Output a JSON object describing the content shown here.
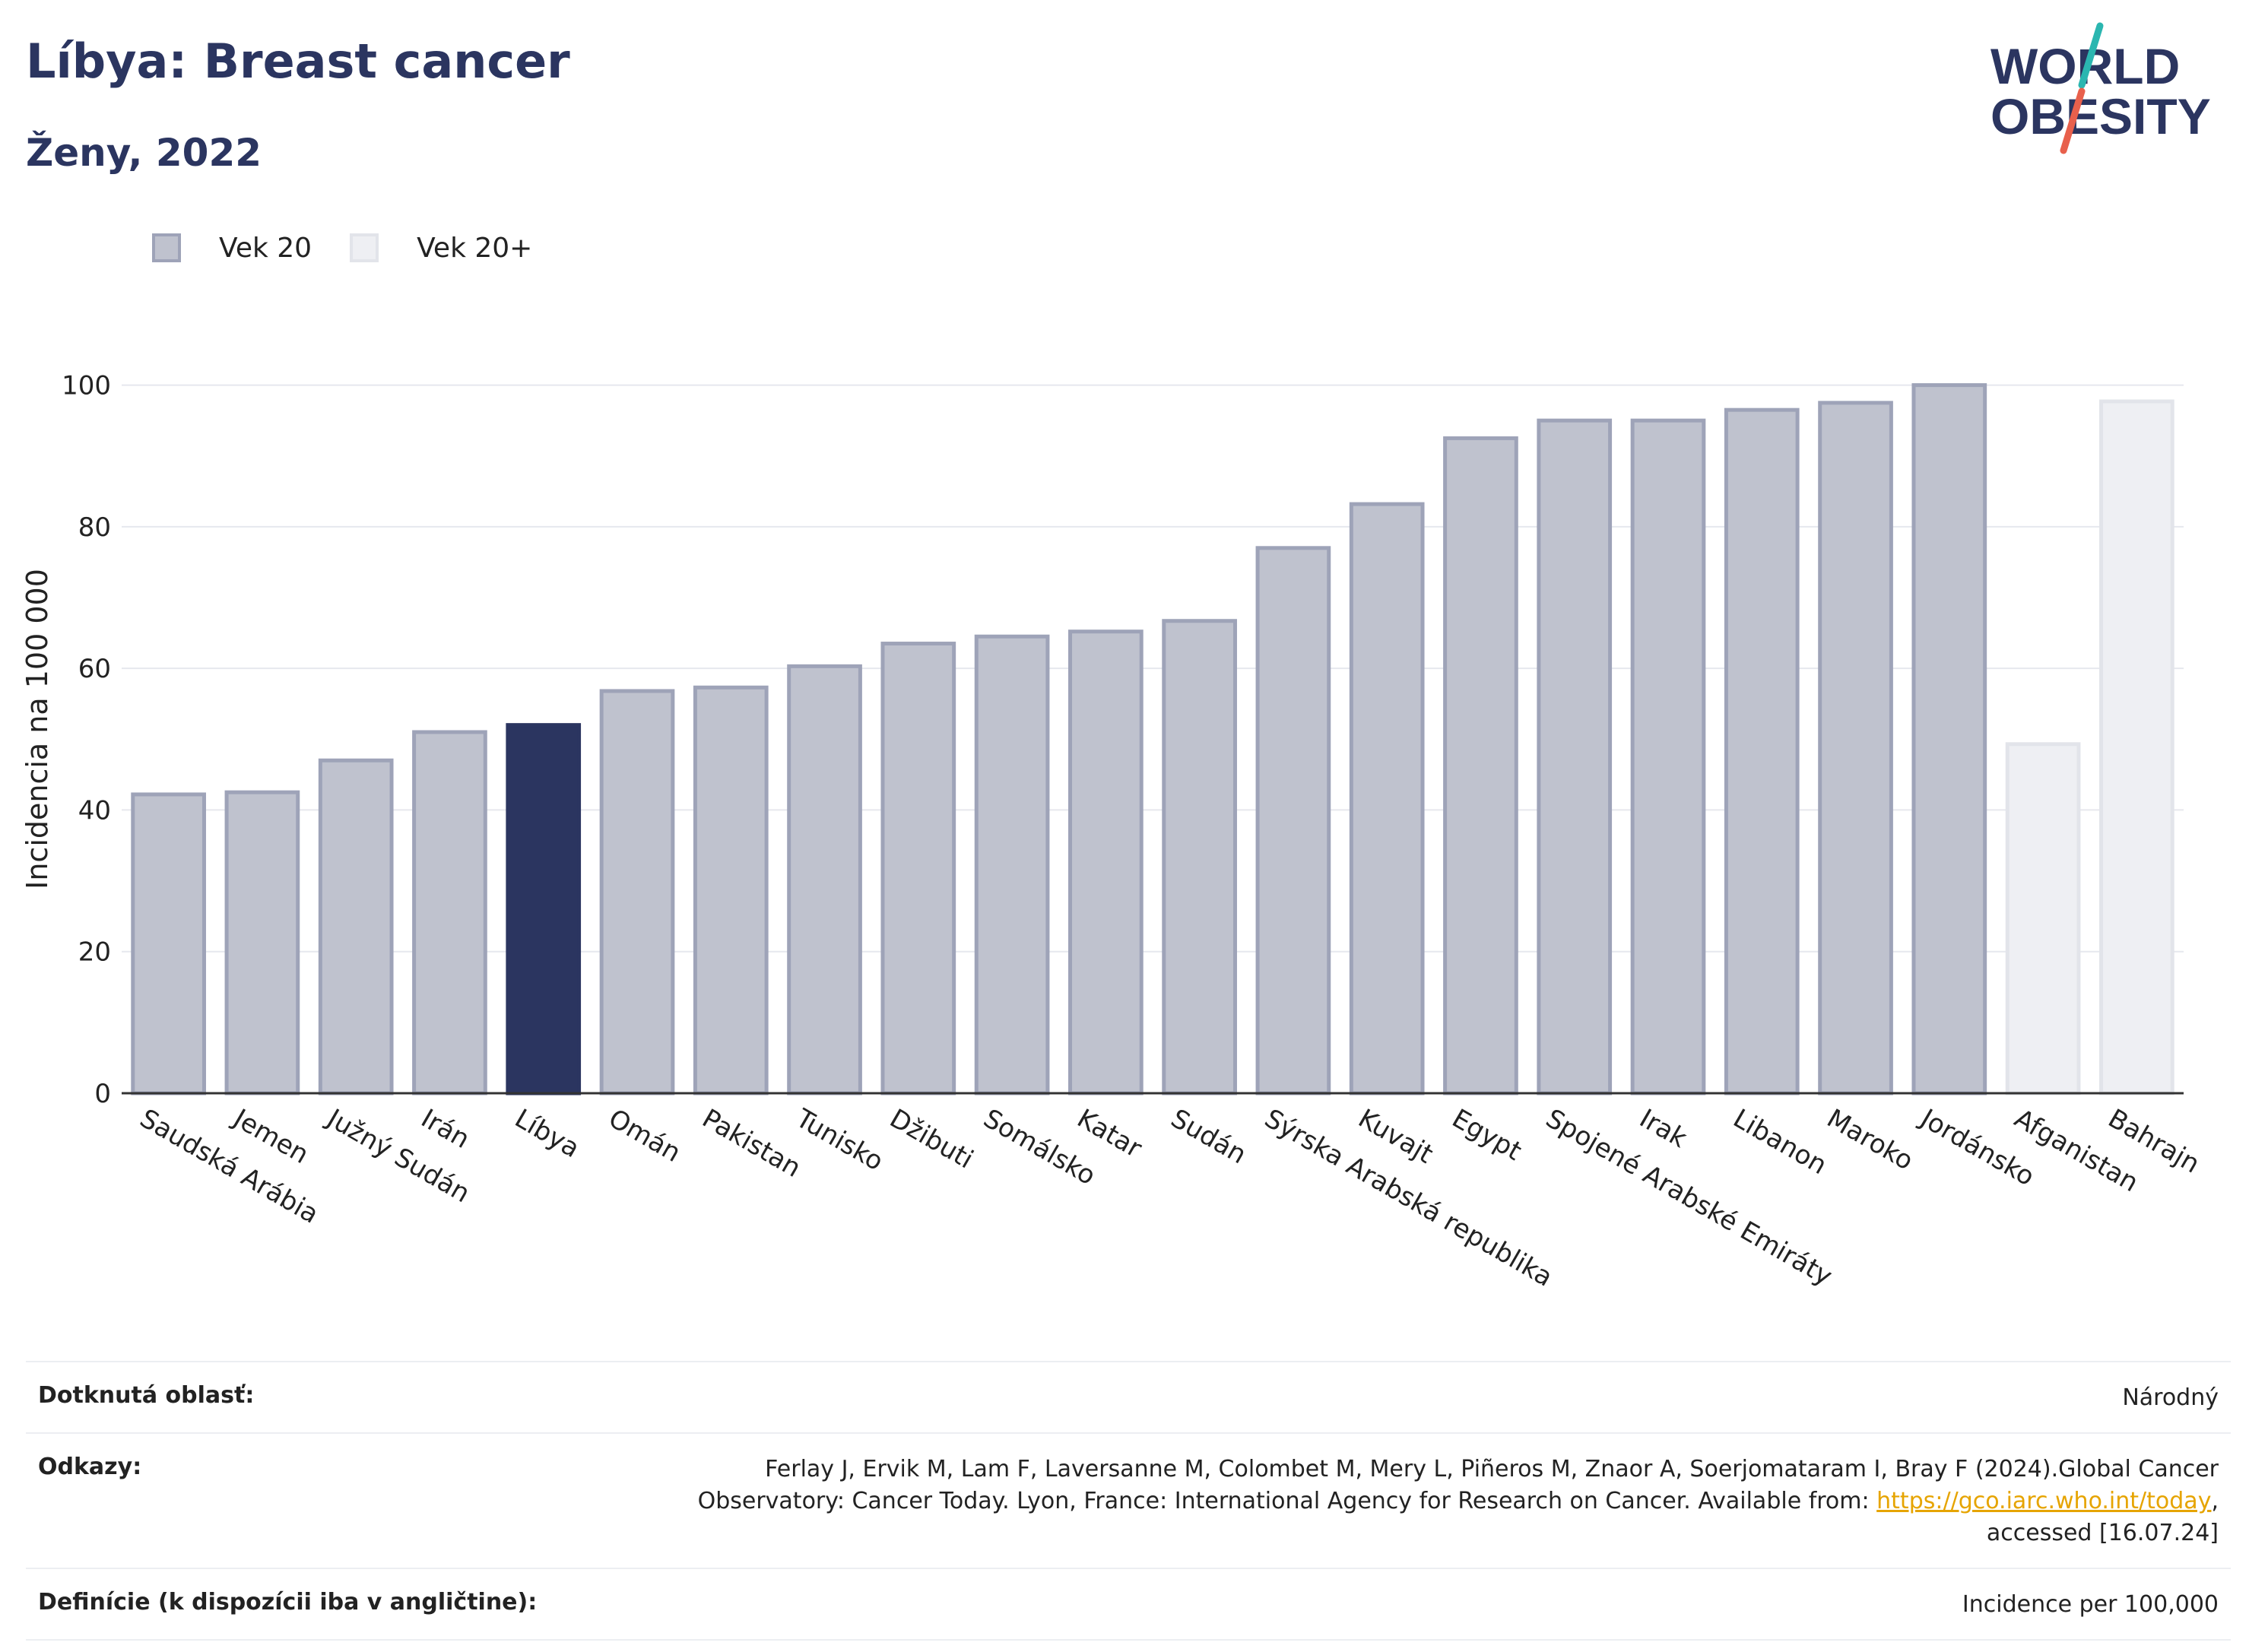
{
  "header": {
    "title": "Líbya: Breast cancer",
    "subtitle": "Ženy, 2022"
  },
  "logo": {
    "line1": "WORLD",
    "line2": "OBESITY",
    "accent_colors": [
      "#2bb6b0",
      "#e8604c"
    ]
  },
  "legend": {
    "items": [
      {
        "label": "Vek 20",
        "color": "#bfc2ce",
        "border": "#9ea3b8"
      },
      {
        "label": "Vek 20+",
        "color": "#eeeff3",
        "border": "#e2e4ea"
      }
    ]
  },
  "chart_data": {
    "type": "bar",
    "ylabel": "Incidencia na 100 000",
    "ylim": [
      0,
      105
    ],
    "yticks": [
      0,
      20,
      40,
      60,
      80,
      100
    ],
    "grid": true,
    "colors": {
      "default": "#bfc2ce",
      "default_border": "#9ea3b8",
      "highlight": "#2b3560",
      "faded": "#eeeff3",
      "faded_border": "#e2e4ea"
    },
    "bars": [
      {
        "category": "Saudská Arábia",
        "value": 42.2,
        "style": "default"
      },
      {
        "category": "Jemen",
        "value": 42.5,
        "style": "default"
      },
      {
        "category": "Južný Sudán",
        "value": 47,
        "style": "default"
      },
      {
        "category": "Irán",
        "value": 51,
        "style": "default"
      },
      {
        "category": "Líbya",
        "value": 52,
        "style": "highlight"
      },
      {
        "category": "Omán",
        "value": 56.8,
        "style": "default"
      },
      {
        "category": "Pakistan",
        "value": 57.3,
        "style": "default"
      },
      {
        "category": "Tunisko",
        "value": 60.3,
        "style": "default"
      },
      {
        "category": "Džibuti",
        "value": 63.5,
        "style": "default"
      },
      {
        "category": "Somálsko",
        "value": 64.5,
        "style": "default"
      },
      {
        "category": "Katar",
        "value": 65.2,
        "style": "default"
      },
      {
        "category": "Sudán",
        "value": 66.7,
        "style": "default"
      },
      {
        "category": "Sýrska Arabská republika",
        "value": 77,
        "style": "default"
      },
      {
        "category": "Kuvajt",
        "value": 83.2,
        "style": "default"
      },
      {
        "category": "Egypt",
        "value": 92.5,
        "style": "default"
      },
      {
        "category": "Spojené Arabské Emiráty",
        "value": 95,
        "style": "default"
      },
      {
        "category": "Irak",
        "value": 95,
        "style": "default"
      },
      {
        "category": "Libanon",
        "value": 96.5,
        "style": "default"
      },
      {
        "category": "Maroko",
        "value": 97.5,
        "style": "default"
      },
      {
        "category": "Jordánsko",
        "value": 100,
        "style": "default"
      },
      {
        "category": "Afganistan",
        "value": 49.3,
        "style": "faded"
      },
      {
        "category": "Bahrajn",
        "value": 97.7,
        "style": "faded"
      }
    ]
  },
  "footer": {
    "rows": [
      {
        "label": "Dotknutá oblasť:",
        "value": "Národný"
      },
      {
        "label": "Odkazy:",
        "value_line1": "Ferlay J, Ervik M, Lam F, Laversanne M, Colombet M, Mery L, Piñeros M, Znaor A, Soerjomataram I, Bray F (2024).Global Cancer",
        "value_line2_prefix": "Observatory: Cancer Today. Lyon, France: International Agency for Research on Cancer. Available from: ",
        "link": "https://gco.iarc.who.int/today",
        "value_line2_suffix": ",",
        "value_line3": "accessed [16.07.24]"
      },
      {
        "label": "Definície (k dispozícii iba v angličtine):",
        "value": "Incidence per 100,000"
      }
    ]
  }
}
